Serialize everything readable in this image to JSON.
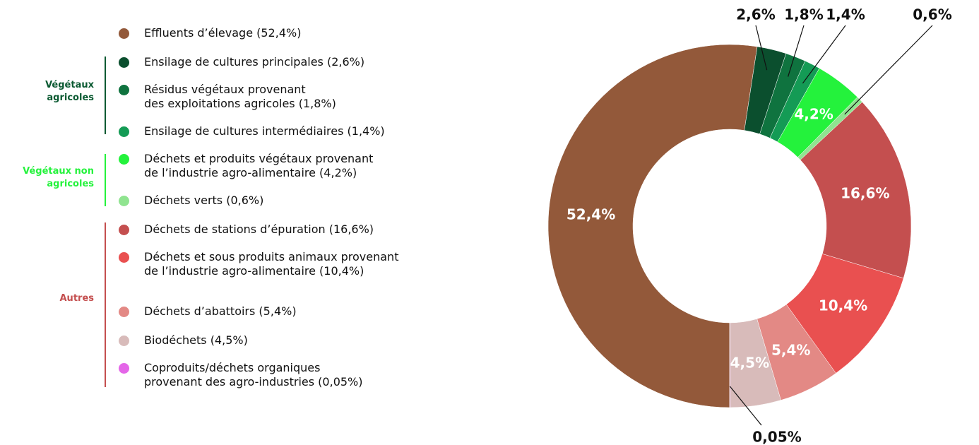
{
  "chart_data": {
    "type": "pie",
    "series": [
      {
        "name": "Effluents d’élevage (52,4%)",
        "color": "#93593a",
        "values": [
          52.4
        ],
        "value_labels": [
          "52,4%"
        ]
      },
      {
        "name": "Ensilage de cultures principales (2,6%)",
        "color": "#0b4f2e",
        "values": [
          2.6
        ],
        "value_labels": [
          "2,6%"
        ]
      },
      {
        "name": "Résidus végétaux provenant\ndes exploitations agricoles (1,8%)",
        "color": "#0f733f",
        "values": [
          1.8
        ],
        "value_labels": [
          "1,8%"
        ]
      },
      {
        "name": "Ensilage de cultures intermédiaires (1,4%)",
        "color": "#149b55",
        "values": [
          1.4
        ],
        "value_labels": [
          "1,4%"
        ]
      },
      {
        "name": "Déchets et produits végétaux provenant\nde l’industrie agro-alimentaire (4,2%)",
        "color": "#24f23c",
        "values": [
          4.2
        ],
        "value_labels": [
          "4,2%"
        ]
      },
      {
        "name": "Déchets verts (0,6%)",
        "color": "#90e490",
        "values": [
          0.6
        ],
        "value_labels": [
          "0,6%"
        ]
      },
      {
        "name": "Déchets de stations d’épuration (16,6%)",
        "color": "#c44f4f",
        "values": [
          16.6
        ],
        "value_labels": [
          "16,6%"
        ]
      },
      {
        "name": "Déchets et sous produits animaux provenant\nde l’industrie agro-alimentaire (10,4%)",
        "color": "#e95050",
        "values": [
          10.4
        ],
        "value_labels": [
          "10,4%"
        ]
      },
      {
        "name": "Déchets d’abattoirs (5,4%)",
        "color": "#e38985",
        "values": [
          5.4
        ],
        "value_labels": [
          "5,4%"
        ]
      },
      {
        "name": "Biodéchets (4,5%)",
        "color": "#d8bbba",
        "values": [
          4.5
        ],
        "value_labels": [
          "4,5%"
        ]
      },
      {
        "name": "Coproduits/déchets organiques\nprovenant des agro-industries (0,05%)",
        "color": "#e466e8",
        "values": [
          0.05
        ],
        "value_labels": [
          "0,05%"
        ]
      }
    ],
    "groups": [
      {
        "label": "Végétaux\nagricoles",
        "color": "#0b5a32"
      },
      {
        "label": "Végétaux non\nagricoles",
        "color": "#24f23c"
      },
      {
        "label": "Autres",
        "color": "#c44f4f"
      }
    ]
  }
}
